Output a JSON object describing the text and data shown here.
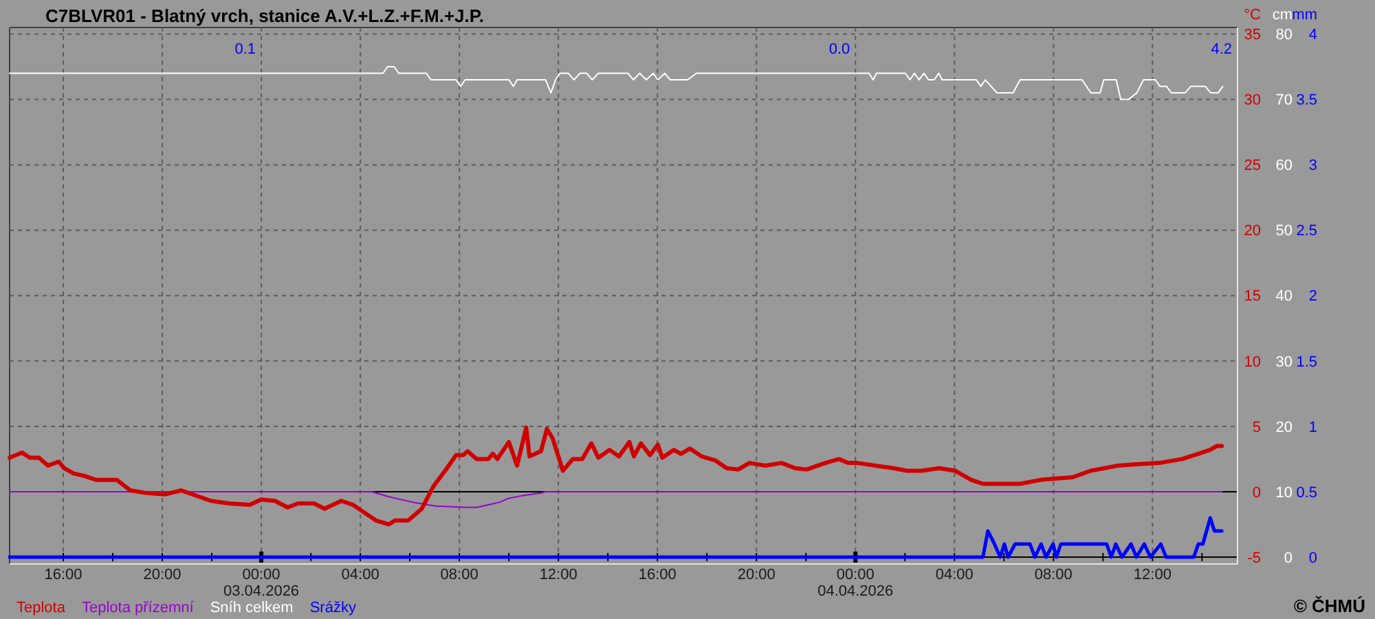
{
  "chart_data": {
    "type": "line",
    "title": "C7BLVR01 - Blatný vrch, stanice A.V.+L.Z.+F.M.+J.P.",
    "ylabel": "°C",
    "y2label": "cm",
    "y3label": "mm",
    "xlim": [
      "2026-04-02T13:50",
      "2026-04-04T15:26"
    ],
    "xticks": [
      {
        "value": "2026-04-02T16:00",
        "label": "16:00"
      },
      {
        "value": "2026-04-02T18:00",
        "label": null
      },
      {
        "value": "2026-04-02T20:00",
        "label": "20:00"
      },
      {
        "value": "2026-04-02T22:00",
        "label": null
      },
      {
        "value": "2026-04-03T00:00",
        "label": "00:00\n03.04.2026"
      },
      {
        "value": "2026-04-03T02:00",
        "label": null
      },
      {
        "value": "2026-04-03T04:00",
        "label": "04:00"
      },
      {
        "value": "2026-04-03T06:00",
        "label": null
      },
      {
        "value": "2026-04-03T08:00",
        "label": "08:00"
      },
      {
        "value": "2026-04-03T10:00",
        "label": null
      },
      {
        "value": "2026-04-03T12:00",
        "label": "12:00"
      },
      {
        "value": "2026-04-03T14:00",
        "label": null
      },
      {
        "value": "2026-04-03T16:00",
        "label": "16:00"
      },
      {
        "value": "2026-04-03T18:00",
        "label": null
      },
      {
        "value": "2026-04-03T20:00",
        "label": "20:00"
      },
      {
        "value": "2026-04-03T22:00",
        "label": null
      },
      {
        "value": "2026-04-04T00:00",
        "label": "00:00\n04.04.2026"
      },
      {
        "value": "2026-04-04T02:00",
        "label": null
      },
      {
        "value": "2026-04-04T04:00",
        "label": "04:00"
      },
      {
        "value": "2026-04-04T06:00",
        "label": null
      },
      {
        "value": "2026-04-04T08:00",
        "label": "08:00"
      },
      {
        "value": "2026-04-04T10:00",
        "label": null
      },
      {
        "value": "2026-04-04T12:00",
        "label": "12:00"
      },
      {
        "value": "2026-04-04T14:00",
        "label": null
      }
    ],
    "ylim": [
      -5,
      35.5
    ],
    "yticks": [
      -5,
      0,
      5,
      10,
      15,
      20,
      25,
      30,
      35
    ],
    "y2lim": [
      0,
      81
    ],
    "y2ticks": [
      0,
      10,
      20,
      30,
      40,
      50,
      60,
      70,
      80
    ],
    "y3lim": [
      0,
      4.05
    ],
    "y3ticks": [
      0,
      0.5,
      1,
      1.5,
      2,
      2.5,
      3,
      3.5,
      4
    ],
    "grid": true,
    "legend": "bottom",
    "ref_lines": [
      {
        "axis": "y",
        "value": 0,
        "color": "#000000"
      }
    ],
    "annotations": [
      "0.1",
      "0.0",
      "4.2",
      "© ČHMÚ"
    ],
    "series": [
      {
        "name": "Teplota",
        "color": "#d00000",
        "x": [
          "2026-04-02T13:50",
          "2026-04-02T14:20",
          "2026-04-02T14:39",
          "2026-04-02T15:01",
          "2026-04-02T15:23",
          "2026-04-02T15:49",
          "2026-04-02T16:02",
          "2026-04-02T16:25",
          "2026-04-02T16:52",
          "2026-04-02T17:20",
          "2026-04-02T17:53",
          "2026-04-02T18:10",
          "2026-04-02T18:43",
          "2026-04-02T19:22",
          "2026-04-02T20:07",
          "2026-04-02T20:46",
          "2026-04-02T21:13",
          "2026-04-02T21:58",
          "2026-04-02T22:42",
          "2026-04-02T23:32",
          "2026-04-03T00:00",
          "2026-04-03T00:33",
          "2026-04-03T01:04",
          "2026-04-03T01:29",
          "2026-04-03T02:08",
          "2026-04-03T02:33",
          "2026-04-03T03:14",
          "2026-04-03T03:42",
          "2026-04-03T04:10",
          "2026-04-03T04:38",
          "2026-04-03T05:09",
          "2026-04-03T05:24",
          "2026-04-03T05:56",
          "2026-04-03T06:29",
          "2026-04-03T06:57",
          "2026-04-03T07:30",
          "2026-04-03T07:52",
          "2026-04-03T08:09",
          "2026-04-03T08:20",
          "2026-04-03T08:42",
          "2026-04-03T09:10",
          "2026-04-03T09:21",
          "2026-04-03T09:32",
          "2026-04-03T10:00",
          "2026-04-03T10:20",
          "2026-04-03T10:42",
          "2026-04-03T10:50",
          "2026-04-03T11:18",
          "2026-04-03T11:32",
          "2026-04-03T11:46",
          "2026-04-03T12:11",
          "2026-04-03T12:35",
          "2026-04-03T12:58",
          "2026-04-03T13:20",
          "2026-04-03T13:37",
          "2026-04-03T14:04",
          "2026-04-03T14:27",
          "2026-04-03T14:52",
          "2026-04-03T15:03",
          "2026-04-03T15:20",
          "2026-04-03T15:42",
          "2026-04-03T16:01",
          "2026-04-03T16:12",
          "2026-04-03T16:40",
          "2026-04-03T16:57",
          "2026-04-03T17:19",
          "2026-04-03T17:47",
          "2026-04-03T18:20",
          "2026-04-03T18:48",
          "2026-04-03T19:16",
          "2026-04-03T19:43",
          "2026-04-03T20:22",
          "2026-04-03T21:01",
          "2026-04-03T21:34",
          "2026-04-03T22:02",
          "2026-04-03T22:47",
          "2026-04-03T23:20",
          "2026-04-03T23:42",
          "2026-04-04T00:04",
          "2026-04-04T00:48",
          "2026-04-04T01:32",
          "2026-04-04T02:05",
          "2026-04-04T02:40",
          "2026-04-04T03:23",
          "2026-04-04T04:02",
          "2026-04-04T04:41",
          "2026-04-04T05:09",
          "2026-04-04T05:48",
          "2026-04-04T06:38",
          "2026-04-04T07:28",
          "2026-04-04T08:01",
          "2026-04-04T08:46",
          "2026-04-04T09:30",
          "2026-04-04T10:37",
          "2026-04-04T11:21",
          "2026-04-04T12:17",
          "2026-04-04T13:12",
          "2026-04-04T13:51",
          "2026-04-04T14:19",
          "2026-04-04T14:36",
          "2026-04-04T14:48"
        ],
        "values": [
          2.6,
          3.0,
          2.6,
          2.6,
          2.0,
          2.3,
          1.8,
          1.4,
          1.2,
          0.9,
          0.9,
          0.9,
          0.1,
          -0.1,
          -0.2,
          0.1,
          -0.2,
          -0.7,
          -0.9,
          -1.0,
          -0.6,
          -0.7,
          -1.2,
          -0.9,
          -0.9,
          -1.3,
          -0.7,
          -1.0,
          -1.6,
          -2.2,
          -2.5,
          -2.2,
          -2.2,
          -1.3,
          0.4,
          1.8,
          2.8,
          2.8,
          3.1,
          2.5,
          2.5,
          2.9,
          2.5,
          3.8,
          2.0,
          4.9,
          2.7,
          3.1,
          4.8,
          4.1,
          1.6,
          2.5,
          2.5,
          3.7,
          2.6,
          3.2,
          2.7,
          3.8,
          2.7,
          3.7,
          2.8,
          3.6,
          2.6,
          3.2,
          2.9,
          3.3,
          2.7,
          2.4,
          1.8,
          1.7,
          2.2,
          2.0,
          2.2,
          1.8,
          1.7,
          2.2,
          2.5,
          2.2,
          2.2,
          2.0,
          1.8,
          1.6,
          1.6,
          1.8,
          1.6,
          0.9,
          0.6,
          0.6,
          0.6,
          0.9,
          1.0,
          1.1,
          1.6,
          2.0,
          2.1,
          2.2,
          2.5,
          2.9,
          3.2,
          3.5,
          3.5
        ]
      },
      {
        "name": "Teplota přízemní",
        "color": "#9900cc",
        "x": [
          "2026-04-02T13:50",
          "2026-04-03T04:28",
          "2026-04-03T05:11",
          "2026-04-03T06:07",
          "2026-04-03T07:02",
          "2026-04-03T08:20",
          "2026-04-03T08:42",
          "2026-04-03T09:10",
          "2026-04-03T09:38",
          "2026-04-03T10:00",
          "2026-04-03T10:33",
          "2026-04-03T11:18",
          "2026-04-03T11:28",
          "2026-04-04T14:48"
        ],
        "values": [
          0,
          0,
          -0.4,
          -0.8,
          -1.1,
          -1.2,
          -1.2,
          -1.0,
          -0.8,
          -0.5,
          -0.3,
          -0.1,
          0,
          0
        ]
      },
      {
        "name": "Sníh celkem",
        "color": "#ffffff",
        "axis": "y2",
        "x": [
          "2026-04-02T13:50",
          "2026-04-03T04:55",
          "2026-04-03T05:06",
          "2026-04-03T05:22",
          "2026-04-03T05:33",
          "2026-04-03T06:40",
          "2026-04-03T06:51",
          "2026-04-03T07:52",
          "2026-04-03T08:03",
          "2026-04-03T08:14",
          "2026-04-03T10:00",
          "2026-04-03T10:11",
          "2026-04-03T10:20",
          "2026-04-03T11:29",
          "2026-04-03T11:42",
          "2026-04-03T11:53",
          "2026-04-03T12:04",
          "2026-04-03T12:24",
          "2026-04-03T12:38",
          "2026-04-03T12:52",
          "2026-04-03T13:09",
          "2026-04-03T13:22",
          "2026-04-03T13:37",
          "2026-04-03T14:49",
          "2026-04-03T15:02",
          "2026-04-03T15:17",
          "2026-04-03T15:33",
          "2026-04-03T15:50",
          "2026-04-03T16:01",
          "2026-04-03T16:18",
          "2026-04-03T16:31",
          "2026-04-03T17:13",
          "2026-04-03T17:35",
          "2026-04-04T00:33",
          "2026-04-04T00:43",
          "2026-04-04T00:51",
          "2026-04-04T02:01",
          "2026-04-04T02:12",
          "2026-04-04T02:23",
          "2026-04-04T02:34",
          "2026-04-04T02:46",
          "2026-04-04T02:57",
          "2026-04-04T03:11",
          "2026-04-04T03:22",
          "2026-04-04T03:30",
          "2026-04-04T04:53",
          "2026-04-04T05:04",
          "2026-04-04T05:15",
          "2026-04-04T05:43",
          "2026-04-04T06:22",
          "2026-04-04T06:39",
          "2026-04-04T09:09",
          "2026-04-04T09:31",
          "2026-04-04T09:53",
          "2026-04-04T10:02",
          "2026-04-04T10:32",
          "2026-04-04T10:43",
          "2026-04-04T11:02",
          "2026-04-04T11:22",
          "2026-04-04T11:38",
          "2026-04-04T12:07",
          "2026-04-04T12:18",
          "2026-04-04T12:34",
          "2026-04-04T12:46",
          "2026-04-04T13:19",
          "2026-04-04T13:33",
          "2026-04-04T14:08",
          "2026-04-04T14:21",
          "2026-04-04T14:39",
          "2026-04-04T14:50"
        ],
        "values": [
          74,
          74,
          75,
          75,
          74,
          74,
          73,
          73,
          72,
          73,
          73,
          72,
          73,
          73,
          71,
          73,
          74,
          74,
          73,
          74,
          74,
          73,
          74,
          74,
          73,
          74,
          73,
          74,
          73,
          74,
          73,
          73,
          74,
          74,
          73,
          74,
          74,
          73,
          74,
          73,
          74,
          73,
          73,
          74,
          73,
          73,
          72,
          73,
          71,
          71,
          73,
          73,
          71,
          71,
          73,
          73,
          70,
          70,
          71,
          73,
          73,
          72,
          72,
          71,
          71,
          72,
          72,
          71,
          71,
          72
        ]
      },
      {
        "name": "Srážky",
        "color": "#0000ff",
        "axis": "y3",
        "x": [
          "2026-04-02T13:50",
          "2026-04-04T05:09",
          "2026-04-04T05:21",
          "2026-04-04T05:37",
          "2026-04-04T05:51",
          "2026-04-04T06:01",
          "2026-04-04T06:10",
          "2026-04-04T06:27",
          "2026-04-04T07:03",
          "2026-04-04T07:15",
          "2026-04-04T07:30",
          "2026-04-04T07:42",
          "2026-04-04T07:59",
          "2026-04-04T08:07",
          "2026-04-04T08:18",
          "2026-04-04T10:09",
          "2026-04-04T10:20",
          "2026-04-04T10:31",
          "2026-04-04T10:46",
          "2026-04-04T11:08",
          "2026-04-04T11:21",
          "2026-04-04T11:40",
          "2026-04-04T11:55",
          "2026-04-04T12:20",
          "2026-04-04T12:33",
          "2026-04-04T13:40",
          "2026-04-04T13:51",
          "2026-04-04T14:02",
          "2026-04-04T14:20",
          "2026-04-04T14:30",
          "2026-04-04T14:48"
        ],
        "values": [
          0,
          0,
          0.2,
          0.1,
          0,
          0.1,
          0,
          0.1,
          0.1,
          0,
          0.1,
          0,
          0.1,
          0,
          0.1,
          0.1,
          0,
          0.1,
          0,
          0.1,
          0,
          0.1,
          0,
          0.1,
          0,
          0,
          0.1,
          0.1,
          0.3,
          0.2,
          0.2
        ]
      }
    ]
  }
}
